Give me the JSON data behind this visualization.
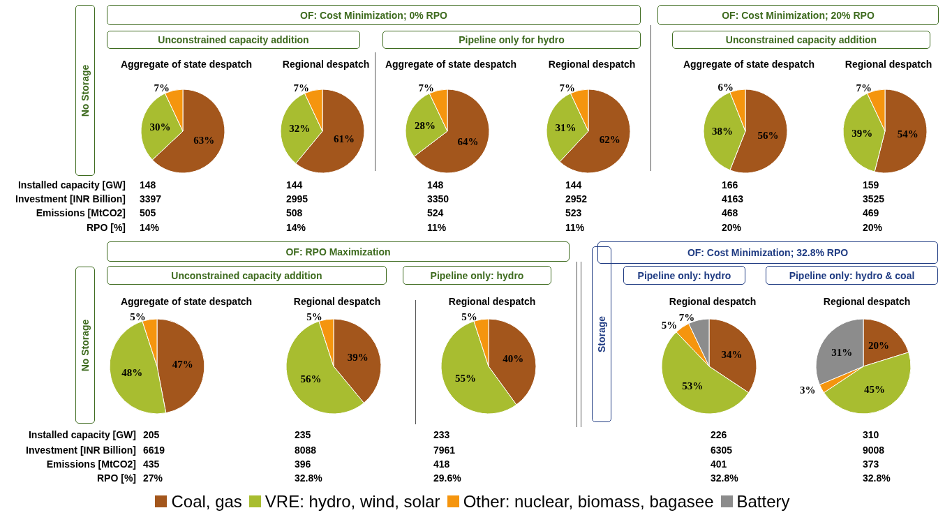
{
  "chart_data": [
    {
      "type": "pie",
      "title": "Aggregate of state despatch",
      "categories": [
        null,
        null,
        null
      ],
      "values": [
        63,
        30,
        7
      ],
      "colors": [
        "#a3561c",
        "#a8bd30",
        "#f5950e"
      ],
      "value_labels": [
        "63%",
        "30%",
        "7%"
      ],
      "annotations": [
        "148",
        "3397",
        "505",
        "14%",
        "No Storage",
        "OF: Cost Minimization; 0% RPO",
        "Unconstrained capacity addition",
        "Installed capacity [GW]",
        "Investment [INR Billion]",
        "Emissions [MtCO2]",
        "RPO [%]"
      ]
    },
    {
      "type": "pie",
      "title": "Regional despatch",
      "categories": [
        null,
        null,
        null
      ],
      "values": [
        61,
        32,
        7
      ],
      "colors": [
        "#a3561c",
        "#a8bd30",
        "#f5950e"
      ],
      "value_labels": [
        "61%",
        "32%",
        "7%"
      ],
      "annotations": [
        "144",
        "2995",
        "508",
        "14%"
      ]
    },
    {
      "type": "pie",
      "title": "Aggregate of state despatch",
      "categories": [
        null,
        null,
        null
      ],
      "values": [
        64,
        28,
        7
      ],
      "colors": [
        "#a3561c",
        "#a8bd30",
        "#f5950e"
      ],
      "value_labels": [
        "64%",
        "28%",
        "7%"
      ],
      "annotations": [
        "148",
        "3350",
        "524",
        "11%",
        "Pipeline only for hydro"
      ]
    },
    {
      "type": "pie",
      "title": "Regional despatch",
      "categories": [
        null,
        null,
        null
      ],
      "values": [
        62,
        31,
        7
      ],
      "colors": [
        "#a3561c",
        "#a8bd30",
        "#f5950e"
      ],
      "value_labels": [
        "62%",
        "31%",
        "7%"
      ],
      "annotations": [
        "144",
        "2952",
        "523",
        "11%"
      ]
    },
    {
      "type": "pie",
      "title": "Aggregate of state despatch",
      "categories": [
        null,
        null,
        null
      ],
      "values": [
        56,
        38,
        6
      ],
      "colors": [
        "#a3561c",
        "#a8bd30",
        "#f5950e"
      ],
      "value_labels": [
        "56%",
        "38%",
        "6%"
      ],
      "annotations": [
        "166",
        "4163",
        "468",
        "20%",
        "OF: Cost Minimization; 20% RPO",
        "Unconstrained capacity addition"
      ]
    },
    {
      "type": "pie",
      "title": "Regional despatch",
      "categories": [
        null,
        null,
        null
      ],
      "values": [
        54,
        39,
        7
      ],
      "colors": [
        "#a3561c",
        "#a8bd30",
        "#f5950e"
      ],
      "value_labels": [
        "54%",
        "39%",
        "7%"
      ],
      "annotations": [
        "159",
        "3525",
        "469",
        "20%"
      ]
    },
    {
      "type": "pie",
      "title": "Aggregate of state despatch",
      "categories": [
        null,
        null,
        null
      ],
      "values": [
        47,
        48,
        5
      ],
      "colors": [
        "#a3561c",
        "#a8bd30",
        "#f5950e"
      ],
      "value_labels": [
        "47%",
        "48%",
        "5%"
      ],
      "annotations": [
        "205",
        "6619",
        "435",
        "27%",
        "No Storage",
        "OF: RPO Maximization",
        "Unconstrained capacity addition",
        "Installed capacity [GW]",
        "Investment [INR Billion]",
        "Emissions [MtCO2]",
        "RPO [%]"
      ]
    },
    {
      "type": "pie",
      "title": "Regional despatch",
      "categories": [
        null,
        null,
        null
      ],
      "values": [
        39,
        56,
        5
      ],
      "colors": [
        "#a3561c",
        "#a8bd30",
        "#f5950e"
      ],
      "value_labels": [
        "39%",
        "56%",
        "5%"
      ],
      "annotations": [
        "235",
        "8088",
        "396",
        "32.8%"
      ]
    },
    {
      "type": "pie",
      "title": "Regional despatch",
      "categories": [
        null,
        null,
        null
      ],
      "values": [
        40,
        55,
        5
      ],
      "colors": [
        "#a3561c",
        "#a8bd30",
        "#f5950e"
      ],
      "value_labels": [
        "40%",
        "55%",
        "5%"
      ],
      "annotations": [
        "233",
        "7961",
        "418",
        "29.6%",
        "Pipeline only: hydro"
      ]
    },
    {
      "type": "pie",
      "title": "Regional despatch",
      "categories": [
        null,
        null,
        null,
        null
      ],
      "values": [
        34,
        53,
        5,
        7
      ],
      "colors": [
        "#a3561c",
        "#a8bd30",
        "#f5950e",
        "#8c8c8c"
      ],
      "value_labels": [
        "34%",
        "53%",
        "5%",
        "7%"
      ],
      "annotations": [
        "226",
        "6305",
        "401",
        "32.8%",
        "Storage",
        "OF: Cost Minimization; 32.8% RPO",
        "Pipeline only: hydro"
      ]
    },
    {
      "type": "pie",
      "title": "Regional despatch",
      "categories": [
        "Coal, gas",
        "VRE: hydro, wind, solar",
        "Other: nuclear, biomass, bagasee",
        "Battery"
      ],
      "values": [
        20,
        45,
        3,
        31
      ],
      "colors": [
        "#a3561c",
        "#a8bd30",
        "#f5950e",
        "#8c8c8c"
      ],
      "value_labels": [
        "20%",
        "45%",
        "3%",
        "31%"
      ],
      "legend": "bottom",
      "annotations": [
        "310",
        "9008",
        "373",
        "32.8%",
        "Pipeline only: hydro & coal"
      ]
    }
  ]
}
